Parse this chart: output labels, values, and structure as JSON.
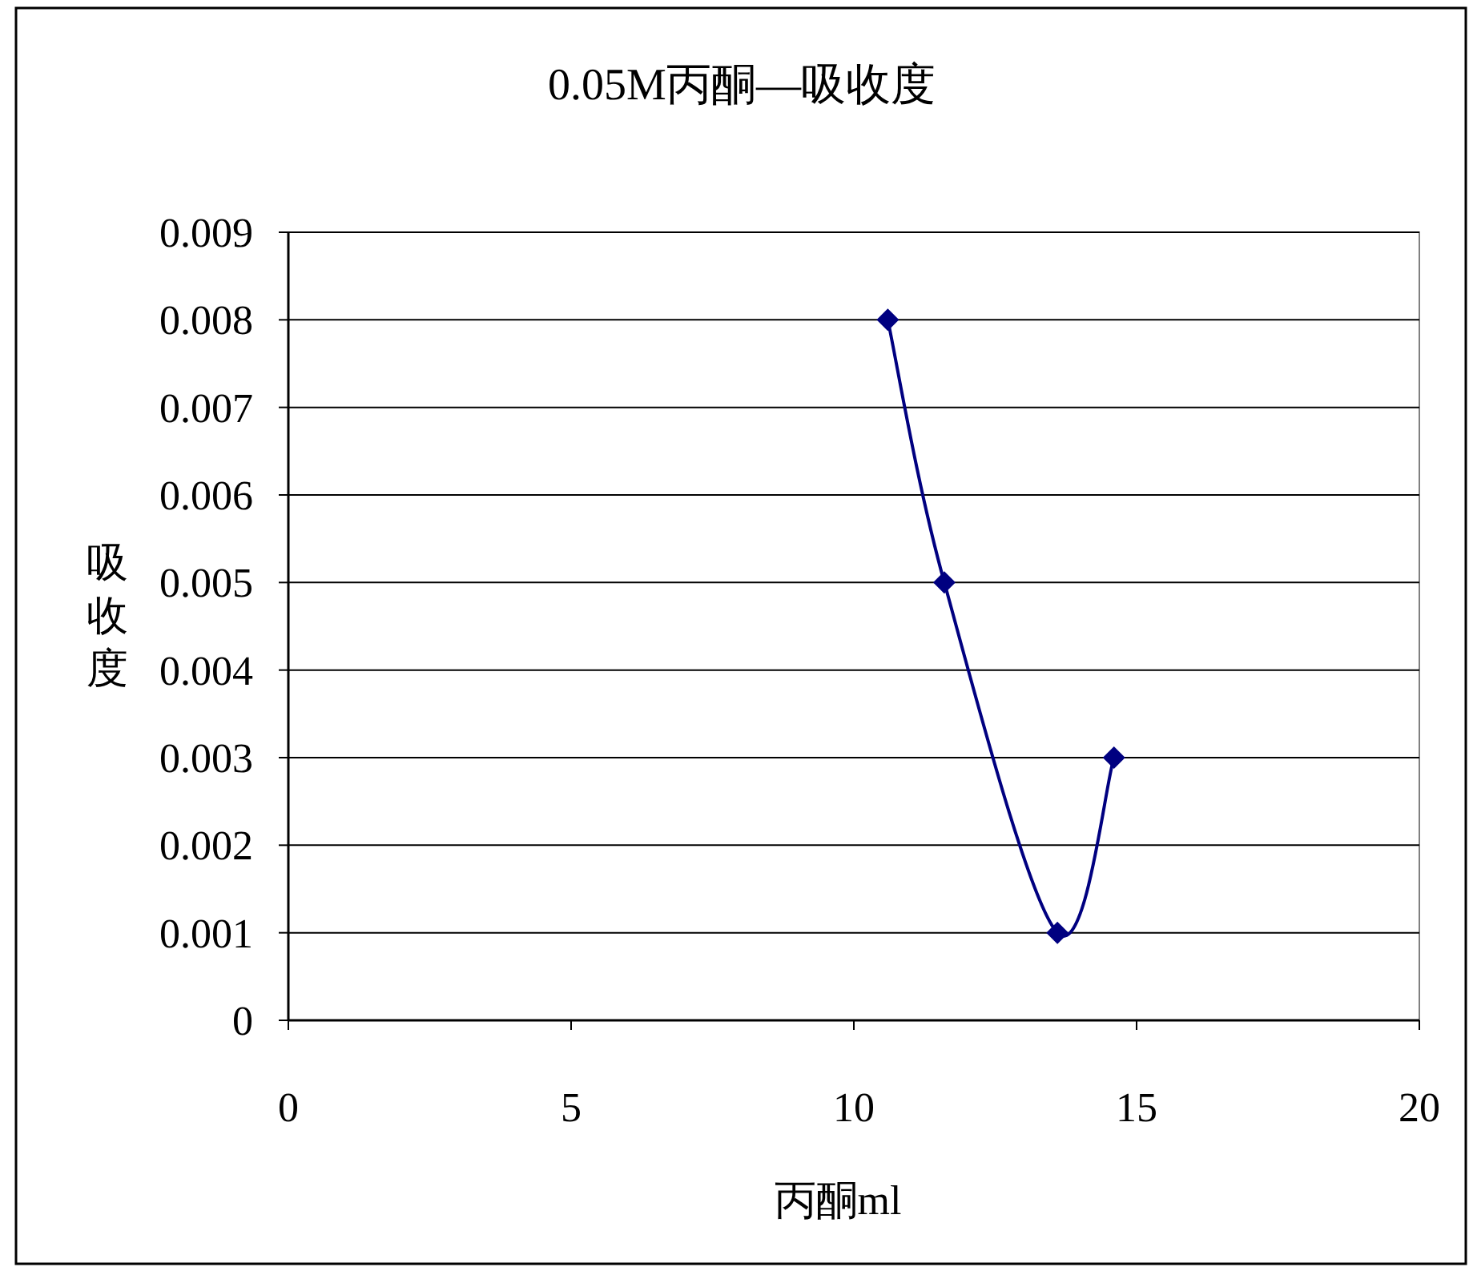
{
  "chart_data": {
    "type": "line",
    "title": "0.05M丙酮—吸收度",
    "xlabel": "丙酮ml",
    "ylabel": "吸收度",
    "x": [
      10.6,
      11.6,
      13.6,
      14.6
    ],
    "series": [
      {
        "color": "#000080",
        "values": [
          0.008,
          0.005,
          0.001,
          0.003
        ]
      }
    ],
    "xlim": [
      0,
      20
    ],
    "xticks": [
      0,
      5,
      10,
      15,
      20
    ],
    "ylim": [
      0,
      0.009
    ],
    "yticks": [
      0,
      0.001,
      0.002,
      0.003,
      0.004,
      0.005,
      0.006,
      0.007,
      0.008,
      0.009
    ],
    "grid": "y",
    "marker": "diamond",
    "line_style": "solid"
  }
}
